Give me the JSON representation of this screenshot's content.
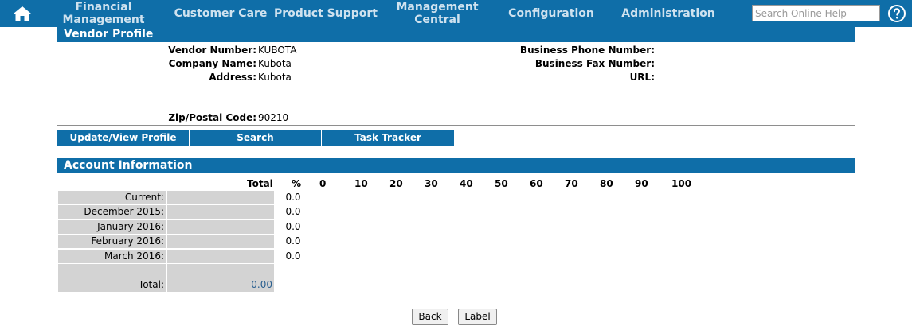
{
  "nav": {
    "home_icon": "home-icon",
    "items": [
      {
        "line1": "Financial",
        "line2": "Management"
      },
      {
        "line1": "Customer Care",
        "line2": ""
      },
      {
        "line1": "Product Support",
        "line2": ""
      },
      {
        "line1": "Management",
        "line2": "Central"
      },
      {
        "line1": "Configuration",
        "line2": ""
      },
      {
        "line1": "Administration",
        "line2": ""
      }
    ],
    "search_placeholder": "Search Online Help",
    "help_icon": "help-icon"
  },
  "vendor_profile": {
    "title": "Vendor Profile",
    "vendor_number_label": "Vendor Number:",
    "vendor_number": "KUBOTA",
    "company_name_label": "Company Name:",
    "company_name": "Kubota",
    "address_label": "Address:",
    "address": "Kubota",
    "zip_label": "Zip/Postal Code:",
    "zip": "90210",
    "phone_label": "Business Phone Number:",
    "phone": "",
    "fax_label": "Business Fax Number:",
    "fax": "",
    "url_label": "URL:",
    "url": ""
  },
  "actions": [
    "Update/View Profile",
    "Search",
    "Task Tracker"
  ],
  "account": {
    "title": "Account Information",
    "total_header": "Total",
    "pct_header": "%",
    "scale": [
      "0",
      "10",
      "20",
      "30",
      "40",
      "50",
      "60",
      "70",
      "80",
      "90",
      "100"
    ],
    "rows": [
      {
        "label": "Current:",
        "total": "",
        "pct": "0.0"
      },
      {
        "label": "December 2015:",
        "total": "",
        "pct": "0.0"
      },
      {
        "label": "January 2016:",
        "total": "",
        "pct": "0.0"
      },
      {
        "label": "February 2016:",
        "total": "",
        "pct": "0.0"
      },
      {
        "label": "March 2016:",
        "total": "",
        "pct": "0.0"
      },
      {
        "label": "",
        "total": "",
        "pct": ""
      },
      {
        "label": "Total:",
        "total": "0.00",
        "pct": ""
      }
    ]
  },
  "buttons": {
    "back": "Back",
    "label": "Label"
  },
  "colors": {
    "nav_bg": "#0f6ea8",
    "header_bg": "#0f6ea8",
    "grid_cell": "#d3d3d3"
  }
}
